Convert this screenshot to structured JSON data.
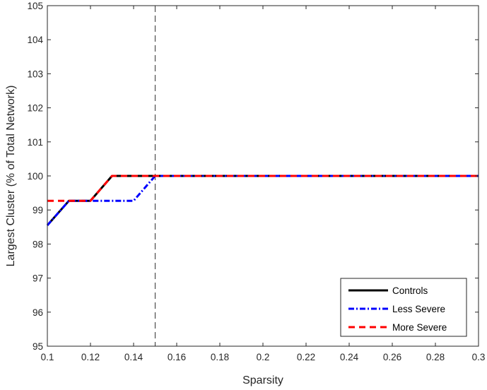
{
  "chart_data": {
    "type": "line",
    "xlabel": "Sparsity",
    "ylabel": "Largest Cluster (% of Total Network)",
    "xlim": [
      0.1,
      0.3
    ],
    "ylim": [
      95,
      105
    ],
    "x_ticks": [
      0.1,
      0.12,
      0.14,
      0.16,
      0.18,
      0.2,
      0.22,
      0.24,
      0.26,
      0.28,
      0.3
    ],
    "x_tick_labels": [
      "0.1",
      "0.12",
      "0.14",
      "0.16",
      "0.18",
      "0.2",
      "0.22",
      "0.24",
      "0.26",
      "0.28",
      "0.3"
    ],
    "y_ticks": [
      95,
      96,
      97,
      98,
      99,
      100,
      101,
      102,
      103,
      104,
      105
    ],
    "y_tick_labels": [
      "95",
      "96",
      "97",
      "98",
      "99",
      "100",
      "101",
      "102",
      "103",
      "104",
      "105"
    ],
    "grid": false,
    "legend_position": "bottom-right",
    "vertical_reference_line": {
      "x": 0.15,
      "style": "dashed",
      "color": "#000000"
    },
    "series": [
      {
        "name": "Controls",
        "color": "#000000",
        "style": "solid",
        "x": [
          0.1,
          0.11,
          0.12,
          0.13,
          0.14,
          0.15,
          0.3
        ],
        "y": [
          98.55,
          99.27,
          99.27,
          100,
          100,
          100,
          100
        ]
      },
      {
        "name": "Less Severe",
        "color": "#0000ff",
        "style": "dashdot",
        "x": [
          0.1,
          0.11,
          0.12,
          0.13,
          0.14,
          0.15,
          0.3
        ],
        "y": [
          98.55,
          99.27,
          99.27,
          99.27,
          99.27,
          100,
          100
        ]
      },
      {
        "name": "More Severe",
        "color": "#ff0000",
        "style": "dashed",
        "x": [
          0.1,
          0.11,
          0.12,
          0.13,
          0.14,
          0.15,
          0.3
        ],
        "y": [
          99.27,
          99.27,
          99.27,
          100,
          100,
          100,
          100
        ]
      }
    ]
  }
}
